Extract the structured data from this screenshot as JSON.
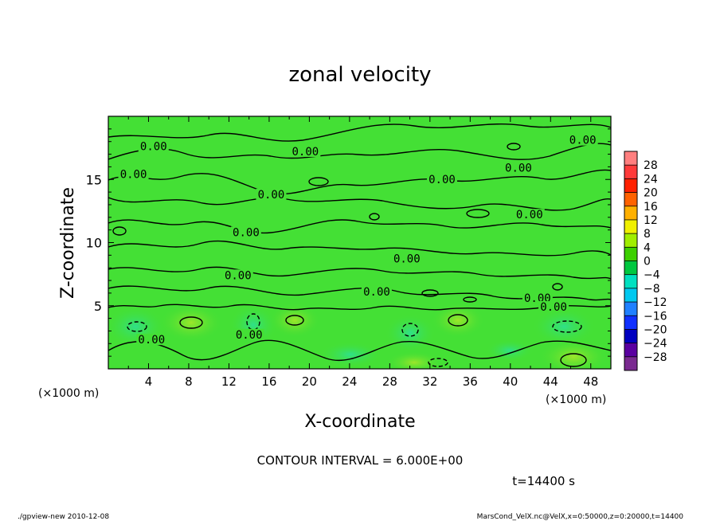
{
  "chart_data": {
    "type": "heatmap",
    "title": "zonal velocity",
    "xlabel": "X-coordinate",
    "ylabel": "Z-coordinate",
    "x_unit_left": "(×1000 m)",
    "x_unit_right": "(×1000 m)",
    "xlim": [
      0,
      50
    ],
    "ylim": [
      0,
      20
    ],
    "x_ticks": [
      "4",
      "8",
      "12",
      "16",
      "20",
      "24",
      "28",
      "32",
      "36",
      "40",
      "44",
      "48"
    ],
    "x_tick_values": [
      4,
      8,
      12,
      16,
      20,
      24,
      28,
      32,
      36,
      40,
      44,
      48
    ],
    "y_ticks": [
      "5",
      "10",
      "15"
    ],
    "y_tick_values": [
      5,
      10,
      15
    ],
    "colorbar": {
      "labels": [
        "28",
        "24",
        "20",
        "16",
        "12",
        "8",
        "4",
        "0",
        "−4",
        "−8",
        "−12",
        "−16",
        "−20",
        "−24",
        "−28"
      ],
      "colors": [
        "#ff7f7f",
        "#ff3a3a",
        "#ff2000",
        "#ff6200",
        "#ffb000",
        "#f0f000",
        "#a0ee00",
        "#3cd000",
        "#00c840",
        "#00e0c0",
        "#00c8f0",
        "#2080ff",
        "#1030ff",
        "#0000c0",
        "#5a00a0",
        "#7a2a90"
      ]
    },
    "contour_labels": [
      {
        "text": "0.00",
        "x": 4.5,
        "z": 17.5
      },
      {
        "text": "0.00",
        "x": 2.5,
        "z": 15.3
      },
      {
        "text": "0.00",
        "x": 19.6,
        "z": 17.1
      },
      {
        "text": "0.00",
        "x": 16.2,
        "z": 13.7
      },
      {
        "text": "0.00",
        "x": 33.2,
        "z": 14.9
      },
      {
        "text": "0.00",
        "x": 47.2,
        "z": 18.0
      },
      {
        "text": "0.00",
        "x": 40.8,
        "z": 15.8
      },
      {
        "text": "0.00",
        "x": 41.9,
        "z": 12.1
      },
      {
        "text": "0.00",
        "x": 13.7,
        "z": 10.7
      },
      {
        "text": "0.00",
        "x": 29.7,
        "z": 8.6
      },
      {
        "text": "0.00",
        "x": 12.9,
        "z": 7.3
      },
      {
        "text": "0.00",
        "x": 26.7,
        "z": 6.0
      },
      {
        "text": "0.00",
        "x": 42.7,
        "z": 5.5
      },
      {
        "text": "0.00",
        "x": 4.3,
        "z": 2.2
      },
      {
        "text": "0.00",
        "x": 14.0,
        "z": 2.6
      },
      {
        "text": "0.00",
        "x": 44.3,
        "z": 4.8
      }
    ],
    "contour_interval_text": "CONTOUR INTERVAL = 6.000E+00",
    "time_text": "t=14400 s"
  },
  "footer": {
    "left": "./gpview-new  2010-12-08",
    "right": "MarsCond_VelX.nc@VelX,x=0:50000,z=0:20000,t=14400"
  },
  "colors": {
    "field": "#44e035",
    "field_light": "#3cd000",
    "background": "#ffffff"
  }
}
